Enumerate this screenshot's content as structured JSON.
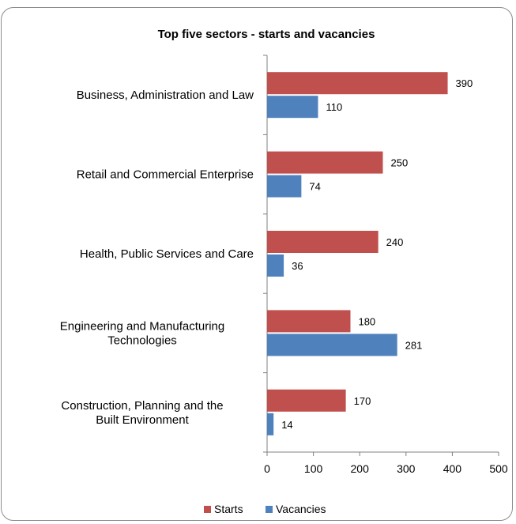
{
  "chart_data": {
    "type": "bar",
    "orientation": "horizontal",
    "title": "Top five sectors - starts and vacancies",
    "categories": [
      [
        "Business, Administration and Law"
      ],
      [
        "Retail and Commercial Enterprise"
      ],
      [
        "Health, Public Services and Care"
      ],
      [
        "Engineering and Manufacturing",
        "Technologies"
      ],
      [
        "Construction, Planning and the",
        "Built Environment"
      ]
    ],
    "series": [
      {
        "name": "Starts",
        "color": "#c0504d",
        "values": [
          390,
          250,
          240,
          180,
          170
        ]
      },
      {
        "name": "Vacancies",
        "color": "#4f81bd",
        "values": [
          110,
          74,
          36,
          281,
          14
        ]
      }
    ],
    "xlim": [
      0,
      500
    ],
    "xticks": [
      0,
      100,
      200,
      300,
      400,
      500
    ],
    "grid": false,
    "legend": "bottom",
    "data_labels": true
  }
}
